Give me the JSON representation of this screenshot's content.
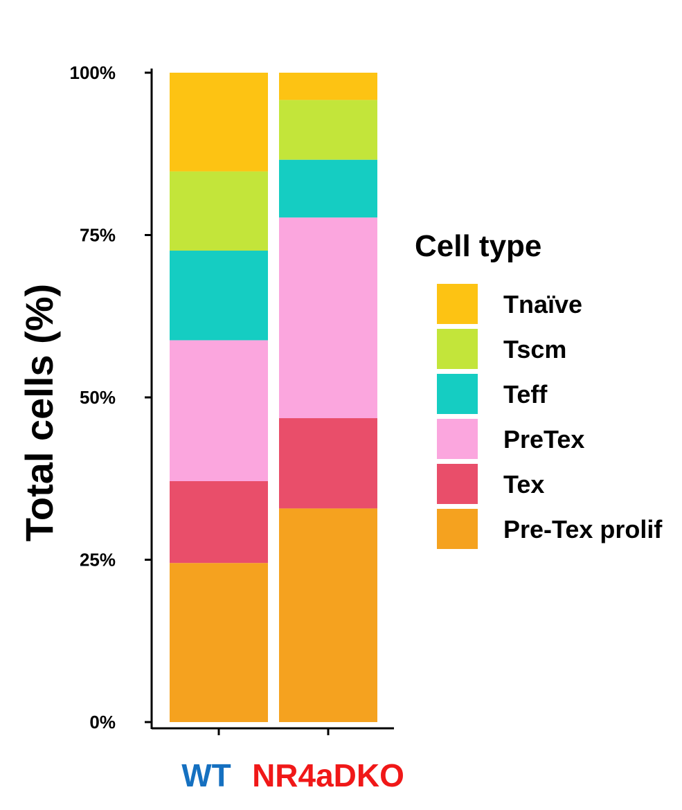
{
  "chart_data": {
    "type": "bar",
    "stacked": true,
    "percent_stacked": true,
    "categories": [
      "WT",
      "NR4aDKO"
    ],
    "category_colors": [
      "#1570c0",
      "#f01818"
    ],
    "ylabel": "Total cells (%)",
    "xlabel": "",
    "ylim": [
      0,
      100
    ],
    "yticks": [
      "0%",
      "25%",
      "50%",
      "75%",
      "100%"
    ],
    "ytick_values": [
      0,
      25,
      50,
      75,
      100
    ],
    "legend": {
      "title": "Cell type",
      "placement": "right"
    },
    "series": [
      {
        "name": "Pre-Tex prolif",
        "color": "#f5a21f",
        "values": [
          24.5,
          32.9
        ]
      },
      {
        "name": "Tex",
        "color": "#e94e6a",
        "values": [
          12.6,
          13.9
        ]
      },
      {
        "name": "PreTex",
        "color": "#fba6de",
        "values": [
          21.7,
          30.9
        ]
      },
      {
        "name": "Teff",
        "color": "#15cdc2",
        "values": [
          13.8,
          8.9
        ]
      },
      {
        "name": "Tscm",
        "color": "#c3e53a",
        "values": [
          12.2,
          9.2
        ]
      },
      {
        "name": "Tnaïve",
        "color": "#fdc313",
        "values": [
          15.2,
          4.2
        ]
      }
    ],
    "legend_order": [
      "Tnaïve",
      "Tscm",
      "Teff",
      "PreTex",
      "Tex",
      "Pre-Tex prolif"
    ],
    "grid": false
  }
}
